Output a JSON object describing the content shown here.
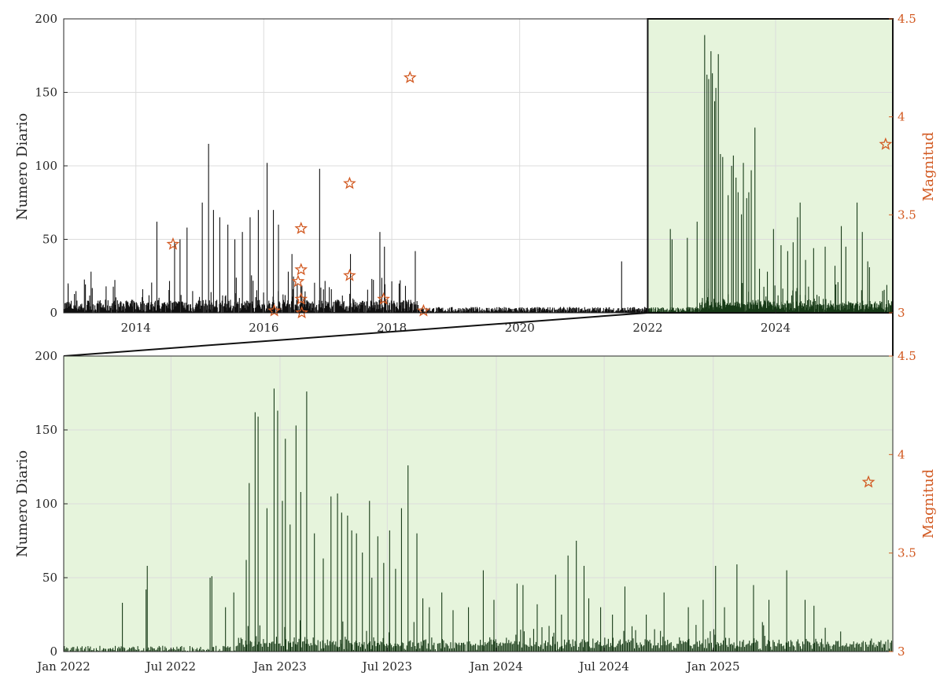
{
  "colors": {
    "bar_top": "#111111",
    "bar_zoom": "#173a17",
    "highlight_fill": "#e6f4dc",
    "magnitude": "#d25a22",
    "grid": "#dcdcdc",
    "axis": "#262626"
  },
  "chart_data": [
    {
      "type": "bar",
      "panel": "overview",
      "xlim": [
        "2012-11-15",
        "2025-10-31"
      ],
      "ylim_left": [
        0,
        200
      ],
      "ylim_right": [
        3,
        4.5
      ],
      "ylabel_left": "Numero Diario",
      "ylabel_right": "Magnitud",
      "x_ticks": [
        {
          "date": "2014-01-01",
          "label": "2014"
        },
        {
          "date": "2016-01-01",
          "label": "2016"
        },
        {
          "date": "2018-01-01",
          "label": "2018"
        },
        {
          "date": "2020-01-01",
          "label": "2020"
        },
        {
          "date": "2022-01-01",
          "label": "2022"
        },
        {
          "date": "2024-01-01",
          "label": "2024"
        }
      ],
      "y_ticks_left": [
        "0",
        "50",
        "100",
        "150",
        "200"
      ],
      "y_ticks_right": [
        "3",
        "3.5",
        "4",
        "4.5"
      ],
      "grid": true,
      "highlight_range": [
        "2022-01-01",
        "2025-10-31"
      ],
      "series": [
        {
          "axis": "left",
          "x": [
            "2012-12-10",
            "2013-04-20",
            "2013-07-15",
            "2014-05-01",
            "2014-08-10",
            "2014-09-10",
            "2014-10-20",
            "2015-01-15",
            "2015-02-20",
            "2015-03-20",
            "2015-04-25",
            "2015-06-10",
            "2015-07-20",
            "2015-09-01",
            "2015-10-15",
            "2015-12-01",
            "2016-01-20",
            "2016-02-25",
            "2016-03-25",
            "2016-05-20",
            "2016-06-10",
            "2016-07-10",
            "2016-11-15",
            "2017-05-10",
            "2017-10-25",
            "2017-11-20",
            "2018-05-15",
            "2021-08-05",
            "2022-05-10",
            "2022-05-20",
            "2022-08-15",
            "2022-10-10",
            "2022-11-22",
            "2022-12-05",
            "2022-12-15",
            "2022-12-28",
            "2023-01-05",
            "2023-01-18",
            "2023-01-25",
            "2023-02-08",
            "2023-02-20",
            "2023-03-05",
            "2023-04-05",
            "2023-04-25",
            "2023-05-05",
            "2023-05-20",
            "2023-06-01",
            "2023-06-20",
            "2023-07-01",
            "2023-07-20",
            "2023-08-01",
            "2023-08-15",
            "2023-09-05",
            "2023-10-01",
            "2023-11-15",
            "2023-12-20",
            "2024-02-01",
            "2024-03-10",
            "2024-04-10",
            "2024-05-05",
            "2024-05-20",
            "2024-06-20",
            "2024-08-05",
            "2024-10-10",
            "2024-12-05",
            "2025-01-10",
            "2025-02-05",
            "2025-04-10",
            "2025-05-10",
            "2025-06-10",
            "2025-06-20"
          ],
          "values": [
            20,
            28,
            18,
            62,
            48,
            50,
            58,
            75,
            115,
            70,
            65,
            60,
            50,
            55,
            65,
            70,
            102,
            70,
            60,
            28,
            40,
            20,
            98,
            40,
            55,
            45,
            42,
            35,
            57,
            50,
            51,
            62,
            189,
            162,
            159,
            178,
            163,
            144,
            153,
            176,
            108,
            106,
            80,
            100,
            107,
            92,
            82,
            67,
            102,
            78,
            82,
            97,
            126,
            30,
            28,
            57,
            46,
            42,
            48,
            65,
            75,
            36,
            44,
            45,
            32,
            59,
            45,
            75,
            55,
            35,
            31
          ]
        },
        {
          "axis": "right",
          "name": "",
          "marker": "star",
          "x": [
            "2014-08-01",
            "2016-03-01",
            "2016-07-15",
            "2016-08-01",
            "2016-08-01",
            "2016-08-01",
            "2016-08-05",
            "2017-05-05",
            "2017-05-05",
            "2017-11-15",
            "2018-04-15",
            "2018-07-01",
            "2025-09-20"
          ],
          "values": [
            3.35,
            3.01,
            3.16,
            3.43,
            3.07,
            3.22,
            3.0,
            3.66,
            3.19,
            3.07,
            4.2,
            3.01,
            3.86
          ]
        }
      ]
    },
    {
      "type": "bar",
      "panel": "zoom",
      "xlim": [
        "2022-01-01",
        "2025-10-31"
      ],
      "ylim_left": [
        0,
        200
      ],
      "ylim_right": [
        3,
        4.5
      ],
      "ylabel_left": "Numero Diario",
      "ylabel_right": "Magnitud",
      "x_ticks": [
        {
          "date": "2022-01-01",
          "label": "Jan 2022"
        },
        {
          "date": "2022-07-01",
          "label": "Jul 2022"
        },
        {
          "date": "2023-01-01",
          "label": "Jan 2023"
        },
        {
          "date": "2023-07-01",
          "label": "Jul 2023"
        },
        {
          "date": "2024-01-01",
          "label": "Jan 2024"
        },
        {
          "date": "2024-07-01",
          "label": "Jul 2024"
        },
        {
          "date": "2025-01-01",
          "label": "Jan 2025"
        }
      ],
      "y_ticks_left": [
        "0",
        "50",
        "100",
        "150",
        "200"
      ],
      "y_ticks_right": [
        "3",
        "3.5",
        "4",
        "4.5"
      ],
      "grid": true,
      "series": [
        {
          "axis": "left",
          "x": [
            "2022-04-10",
            "2022-05-20",
            "2022-05-22",
            "2022-09-05",
            "2022-09-08",
            "2022-10-01",
            "2022-10-15",
            "2022-11-05",
            "2022-11-10",
            "2022-11-20",
            "2022-11-25",
            "2022-12-10",
            "2022-12-22",
            "2022-12-28",
            "2023-01-05",
            "2023-01-10",
            "2023-01-18",
            "2023-01-28",
            "2023-02-05",
            "2023-02-15",
            "2023-02-28",
            "2023-03-15",
            "2023-03-28",
            "2023-04-08",
            "2023-04-15",
            "2023-04-25",
            "2023-05-02",
            "2023-05-10",
            "2023-05-20",
            "2023-06-01",
            "2023-06-05",
            "2023-06-15",
            "2023-06-25",
            "2023-07-05",
            "2023-07-15",
            "2023-07-25",
            "2023-08-05",
            "2023-08-20",
            "2023-08-30",
            "2023-09-10",
            "2023-10-01",
            "2023-10-20",
            "2023-11-15",
            "2023-12-10",
            "2023-12-28",
            "2024-02-05",
            "2024-02-15",
            "2024-03-10",
            "2024-04-10",
            "2024-04-20",
            "2024-05-01",
            "2024-05-15",
            "2024-05-28",
            "2024-06-05",
            "2024-06-25",
            "2024-07-15",
            "2024-08-05",
            "2024-09-10",
            "2024-10-10",
            "2024-11-20",
            "2024-12-15",
            "2025-01-05",
            "2025-01-20",
            "2025-02-10",
            "2025-03-10",
            "2025-04-05",
            "2025-05-05",
            "2025-06-05",
            "2025-06-20"
          ],
          "values": [
            33,
            42,
            58,
            50,
            51,
            30,
            40,
            62,
            114,
            162,
            159,
            97,
            178,
            163,
            102,
            144,
            86,
            153,
            108,
            176,
            80,
            63,
            105,
            107,
            94,
            92,
            82,
            80,
            67,
            102,
            50,
            78,
            60,
            82,
            56,
            97,
            126,
            80,
            36,
            30,
            40,
            28,
            30,
            55,
            35,
            46,
            45,
            32,
            52,
            25,
            65,
            75,
            58,
            36,
            30,
            25,
            44,
            25,
            40,
            30,
            35,
            58,
            30,
            59,
            45,
            35,
            55,
            35,
            31
          ]
        },
        {
          "axis": "right",
          "name": "",
          "marker": "star",
          "x": [
            "2025-09-20"
          ],
          "values": [
            3.86
          ]
        }
      ]
    }
  ]
}
